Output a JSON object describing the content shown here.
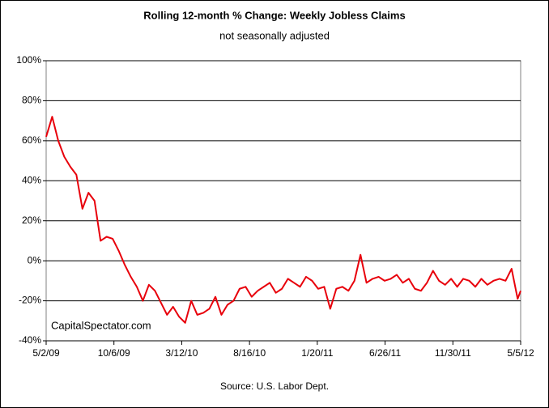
{
  "chart_data": {
    "type": "line",
    "title": "Rolling 12-month %  Change: Weekly Jobless Claims",
    "subtitle": "not seasonally adjusted",
    "source": "Source: U.S. Labor Dept.",
    "watermark": "CapitalSpectator.com",
    "color": "#e8000b",
    "grid": true,
    "x": [
      "5/2/09",
      "5/16/09",
      "5/30/09",
      "6/13/09",
      "6/27/09",
      "7/11/09",
      "7/25/09",
      "8/8/09",
      "8/22/09",
      "9/5/09",
      "9/19/09",
      "10/3/09",
      "10/17/09",
      "10/31/09",
      "11/14/09",
      "11/28/09",
      "12/12/09",
      "12/26/09",
      "1/9/10",
      "1/23/10",
      "2/6/10",
      "2/20/10",
      "3/6/10",
      "3/20/10",
      "4/3/10",
      "4/17/10",
      "5/1/10",
      "5/15/10",
      "5/29/10",
      "6/12/10",
      "6/26/10",
      "7/10/10",
      "7/24/10",
      "8/7/10",
      "8/21/10",
      "9/4/10",
      "9/18/10",
      "10/2/10",
      "10/16/10",
      "10/30/10",
      "11/13/10",
      "11/27/10",
      "12/11/10",
      "12/25/10",
      "1/8/11",
      "1/22/11",
      "2/5/11",
      "2/19/11",
      "3/5/11",
      "3/19/11",
      "4/2/11",
      "4/16/11",
      "4/30/11",
      "5/14/11",
      "5/28/11",
      "6/11/11",
      "6/25/11",
      "7/9/11",
      "7/23/11",
      "8/6/11",
      "8/20/11",
      "9/3/11",
      "9/17/11",
      "10/1/11",
      "10/15/11",
      "10/29/11",
      "11/12/11",
      "11/26/11",
      "12/10/11",
      "12/24/11",
      "1/7/12",
      "1/21/12",
      "2/4/12",
      "2/18/12",
      "3/3/12",
      "3/17/12",
      "3/31/12",
      "4/14/12",
      "4/28/12",
      "5/5/12"
    ],
    "values": [
      62,
      72,
      60,
      52,
      47,
      43,
      26,
      34,
      30,
      10,
      12,
      11,
      5,
      -2,
      -8,
      -13,
      -20,
      -12,
      -15,
      -21,
      -27,
      -23,
      -28,
      -31,
      -20,
      -27,
      -26,
      -24,
      -18,
      -27,
      -22,
      -20,
      -14,
      -13,
      -18,
      -15,
      -13,
      -11,
      -16,
      -14,
      -9,
      -11,
      -13,
      -8,
      -10,
      -14,
      -13,
      -24,
      -14,
      -13,
      -15,
      -10,
      3,
      -11,
      -9,
      -8,
      -10,
      -9,
      -7,
      -11,
      -9,
      -14,
      -15,
      -11,
      -5,
      -10,
      -12,
      -9,
      -13,
      -9,
      -10,
      -13,
      -9,
      -12,
      -10,
      -9,
      -10,
      -4,
      -19,
      -15
    ],
    "xlim": [
      "5/2/09",
      "5/5/12"
    ],
    "xticks": [
      "5/2/09",
      "10/6/09",
      "3/12/10",
      "8/16/10",
      "1/20/11",
      "6/26/11",
      "11/30/11",
      "5/5/12"
    ],
    "ylim": [
      -40,
      100
    ],
    "yticks": [
      {
        "value": -40,
        "label": "-40%"
      },
      {
        "value": -20,
        "label": "-20%"
      },
      {
        "value": 0,
        "label": "0%"
      },
      {
        "value": 20,
        "label": "20%"
      },
      {
        "value": 40,
        "label": "40%"
      },
      {
        "value": 60,
        "label": "60%"
      },
      {
        "value": 80,
        "label": "80%"
      },
      {
        "value": 100,
        "label": "100%"
      }
    ]
  }
}
